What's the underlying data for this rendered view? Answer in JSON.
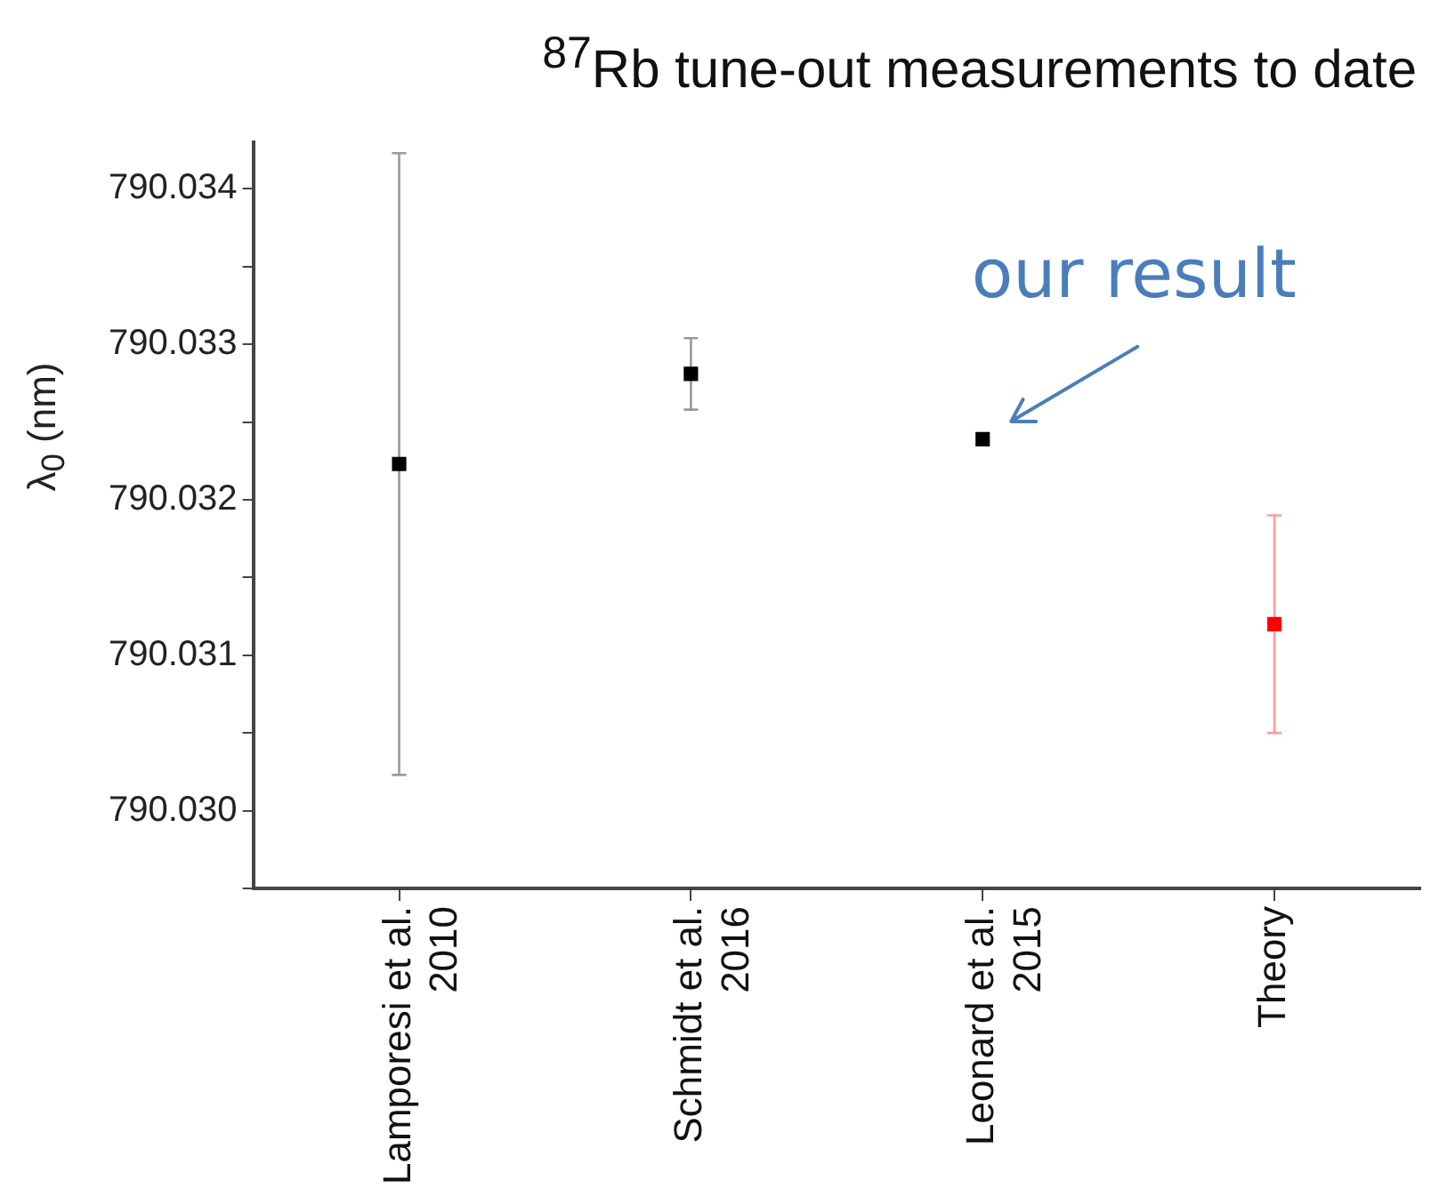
{
  "chart_data": {
    "type": "scatter",
    "title": "$^{87}$Rb tune-out measurements to date",
    "ylabel": "λ$_{0}$ (nm)",
    "categories": [
      "Lamporesi et al.\n2010",
      "Schmidt et al.\n2016",
      "Leonard et al.\n2015",
      "Theory"
    ],
    "values": [
      790.03223,
      790.03281,
      790.03239,
      790.0312
    ],
    "errors": [
      0.002,
      0.00023,
      null,
      0.0007
    ],
    "colors": [
      "#000000",
      "#000000",
      "#000000",
      "#ff0000"
    ],
    "marker": "square",
    "ylim": [
      790.0295,
      790.0343
    ],
    "yticks": [
      {
        "value": 790.0295,
        "label": null
      },
      {
        "value": 790.03,
        "label": "790.030"
      },
      {
        "value": 790.0305,
        "label": null
      },
      790.031,
      {
        "value": 790.0315,
        "label": null
      },
      790.032,
      {
        "value": 790.0325,
        "label": null
      },
      790.033,
      {
        "value": 790.0335,
        "label": null
      },
      790.034
    ],
    "grid": false,
    "legend": false,
    "annotations": [
      {
        "text": "our result",
        "x": "Leonard et al.\n2015",
        "y": 790.03239
      }
    ]
  }
}
